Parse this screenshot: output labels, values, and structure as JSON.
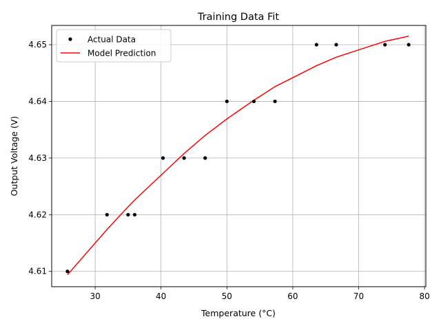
{
  "chart_data": {
    "type": "line",
    "title": "Training Data Fit",
    "xlabel": "Temperature (°C)",
    "ylabel": "Output Voltage (V)",
    "xlim": [
      23.4,
      80.2
    ],
    "ylim": [
      4.6073,
      4.6534
    ],
    "xticks": [
      30,
      40,
      50,
      60,
      70,
      80
    ],
    "yticks": [
      4.61,
      4.62,
      4.63,
      4.64,
      4.65
    ],
    "grid": true,
    "legend_position": "top-left",
    "series": [
      {
        "name": "Actual Data",
        "style": "points",
        "color": "#000000",
        "x": [
          25.8,
          31.8,
          35.0,
          36.0,
          40.3,
          43.5,
          46.7,
          50.0,
          54.1,
          57.3,
          63.6,
          66.6,
          74.0,
          77.6
        ],
        "y": [
          4.61,
          4.62,
          4.62,
          4.62,
          4.63,
          4.63,
          4.63,
          4.64,
          4.64,
          4.64,
          4.65,
          4.65,
          4.65,
          4.65
        ]
      },
      {
        "name": "Model Prediction",
        "style": "line",
        "color": "#ff0000",
        "x": [
          25.8,
          31.8,
          35.0,
          36.0,
          40.3,
          43.5,
          46.7,
          50.0,
          54.1,
          57.3,
          63.6,
          66.6,
          74.0,
          77.6
        ],
        "y": [
          4.6094,
          4.6174,
          4.6214,
          4.6226,
          4.6273,
          4.6308,
          4.634,
          4.6369,
          4.6402,
          4.6426,
          4.6463,
          4.6478,
          4.6506,
          4.6515
        ]
      }
    ]
  }
}
